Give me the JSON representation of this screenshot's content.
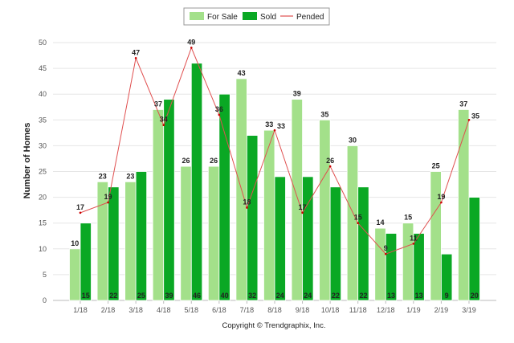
{
  "chart_data": {
    "type": "bar",
    "categories": [
      "1/18",
      "2/18",
      "3/18",
      "4/18",
      "5/18",
      "6/18",
      "7/18",
      "8/18",
      "9/18",
      "10/18",
      "11/18",
      "12/18",
      "1/19",
      "2/19",
      "3/19"
    ],
    "series": [
      {
        "name": "For Sale",
        "kind": "bar",
        "color": "#a3e08a",
        "values": [
          10,
          23,
          23,
          37,
          26,
          26,
          43,
          33,
          39,
          35,
          30,
          14,
          15,
          25,
          37
        ]
      },
      {
        "name": "Sold",
        "kind": "bar",
        "color": "#0aa824",
        "values": [
          15,
          22,
          25,
          39,
          46,
          40,
          32,
          24,
          24,
          22,
          22,
          13,
          13,
          9,
          20
        ]
      },
      {
        "name": "Pended",
        "kind": "line",
        "color": "#e05050",
        "values": [
          17,
          19,
          47,
          34,
          49,
          36,
          18,
          33,
          17,
          26,
          15,
          9,
          11,
          19,
          35
        ]
      }
    ],
    "ylabel": "Number of Homes",
    "ylim": [
      0,
      50
    ],
    "yticks": [
      0,
      5,
      10,
      15,
      20,
      25,
      30,
      35,
      40,
      45,
      50
    ],
    "grid": true,
    "legend": "top-center",
    "footer": "Copyright © Trendgraphix, Inc."
  }
}
